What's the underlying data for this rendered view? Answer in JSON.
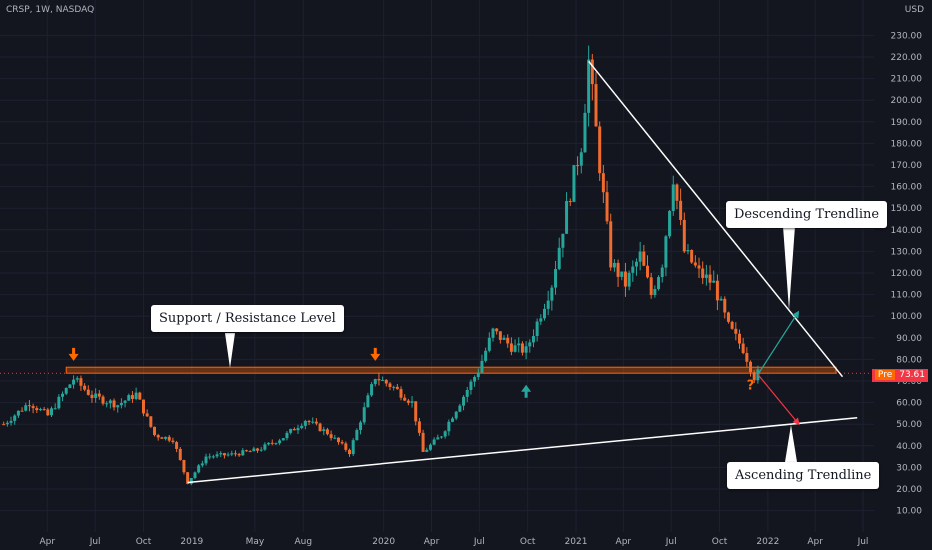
{
  "header": {
    "symbol": "CRSP, 1W, NASDAQ",
    "currency": "USD"
  },
  "price_tag": {
    "label": "Pre",
    "value": "73.61"
  },
  "annotations": {
    "support_resistance": "Support / Resistance Level",
    "descending": "Descending Trendline",
    "ascending": "Ascending Trendline",
    "question": "?"
  },
  "colors": {
    "background": "#13151f",
    "up": "#26a69a",
    "down": "#ef6c2e",
    "accent": "#ff6a00",
    "grid": "#1e2130",
    "line": "#ffffff"
  },
  "chart_data": {
    "type": "candlestick",
    "title": "",
    "xlabel": "",
    "ylabel": "",
    "ylim": [
      0,
      240
    ],
    "y_ticks": [
      10,
      20,
      30,
      40,
      50,
      60,
      70,
      80,
      90,
      100,
      110,
      120,
      130,
      140,
      150,
      160,
      170,
      180,
      190,
      200,
      210,
      220,
      230
    ],
    "y_tick_labels": [
      "10.00",
      "20.00",
      "30.00",
      "40.00",
      "50.00",
      "60.00",
      "70.00",
      "80.00",
      "90.00",
      "100.00",
      "110.00",
      "120.00",
      "130.00",
      "140.00",
      "150.00",
      "160.00",
      "170.00",
      "180.00",
      "190.00",
      "200.00",
      "210.00",
      "220.00",
      "230.00"
    ],
    "x_tick_labels": [
      "Apr",
      "Jul",
      "Oct",
      "2019",
      "May",
      "Aug",
      "2020",
      "Apr",
      "Jul",
      "Oct",
      "2021",
      "Apr",
      "Jul",
      "Oct",
      "2022",
      "Apr",
      "Jul"
    ],
    "x_tick_dates": [
      "2018-04-01",
      "2018-07-01",
      "2018-10-01",
      "2019-01-01",
      "2019-05-01",
      "2019-08-01",
      "2020-01-01",
      "2020-04-01",
      "2020-07-01",
      "2020-10-01",
      "2021-01-01",
      "2021-04-01",
      "2021-07-01",
      "2021-10-01",
      "2022-01-01",
      "2022-04-01",
      "2022-07-01"
    ],
    "price_path": [
      [
        "2018-01-08",
        50
      ],
      [
        "2018-02-26",
        60
      ],
      [
        "2018-04-02",
        54
      ],
      [
        "2018-05-21",
        71
      ],
      [
        "2018-06-25",
        63
      ],
      [
        "2018-08-13",
        59
      ],
      [
        "2018-09-17",
        64
      ],
      [
        "2018-10-22",
        45
      ],
      [
        "2018-11-26",
        43
      ],
      [
        "2018-12-24",
        23
      ],
      [
        "2019-01-28",
        35
      ],
      [
        "2019-03-18",
        36
      ],
      [
        "2019-05-06",
        38
      ],
      [
        "2019-06-24",
        44
      ],
      [
        "2019-08-05",
        52
      ],
      [
        "2019-09-16",
        46
      ],
      [
        "2019-10-28",
        37
      ],
      [
        "2019-12-16",
        72
      ],
      [
        "2020-01-20",
        67
      ],
      [
        "2020-02-24",
        60
      ],
      [
        "2020-03-16",
        37
      ],
      [
        "2020-04-20",
        45
      ],
      [
        "2020-05-25",
        60
      ],
      [
        "2020-06-29",
        75
      ],
      [
        "2020-07-27",
        93
      ],
      [
        "2020-08-31",
        86
      ],
      [
        "2020-09-28",
        84
      ],
      [
        "2020-10-19",
        97
      ],
      [
        "2020-11-16",
        115
      ],
      [
        "2020-12-14",
        150
      ],
      [
        "2021-01-11",
        180
      ],
      [
        "2021-01-25",
        218
      ],
      [
        "2021-02-15",
        170
      ],
      [
        "2021-03-08",
        125
      ],
      [
        "2021-04-05",
        115
      ],
      [
        "2021-05-03",
        128
      ],
      [
        "2021-05-24",
        110
      ],
      [
        "2021-06-14",
        125
      ],
      [
        "2021-07-05",
        165
      ],
      [
        "2021-07-26",
        130
      ],
      [
        "2021-08-23",
        120
      ],
      [
        "2021-09-20",
        115
      ],
      [
        "2021-10-18",
        95
      ],
      [
        "2021-11-15",
        85
      ],
      [
        "2021-12-06",
        72
      ],
      [
        "2021-12-13",
        73.61
      ]
    ],
    "support_resistance_level": 75,
    "last_price": 73.61,
    "descending_trendline": [
      [
        "2021-01-25",
        218
      ],
      [
        "2022-05-23",
        72
      ]
    ],
    "ascending_trendline": [
      [
        "2018-12-24",
        23
      ],
      [
        "2022-06-20",
        53
      ]
    ],
    "touch_markers_down": [
      [
        "2018-05-21",
        77
      ],
      [
        "2019-12-16",
        77
      ]
    ],
    "touch_marker_up": [
      "2020-09-28",
      65
    ],
    "projection_up": [
      [
        "2021-12-13",
        73
      ],
      [
        "2022-02-28",
        102
      ]
    ],
    "projection_down": [
      [
        "2021-12-13",
        73
      ],
      [
        "2022-03-01",
        50
      ]
    ]
  }
}
